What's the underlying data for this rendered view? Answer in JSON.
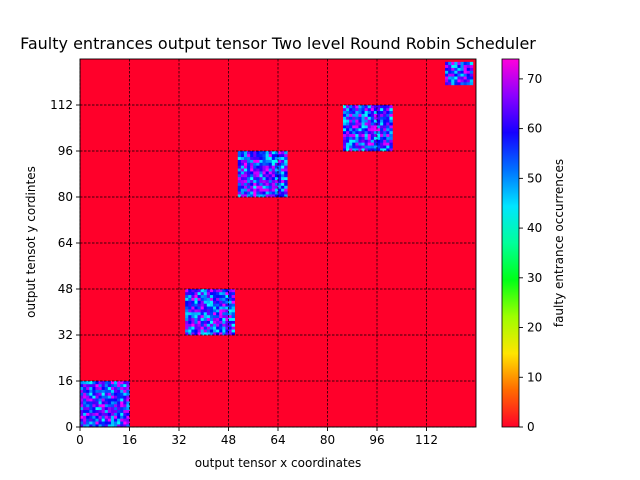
{
  "chart_data": {
    "type": "heatmap",
    "title": "Faulty entrances output tensor Two level Round Robin Scheduler",
    "xlabel": "output tensor x coordinates",
    "ylabel": "output tensot y cordintes",
    "colorbar_label": "faulty entrance occurrences",
    "xlim": [
      0,
      128
    ],
    "ylim": [
      0,
      128
    ],
    "x_ticks": [
      0,
      16,
      32,
      48,
      64,
      80,
      96,
      112
    ],
    "y_ticks": [
      0,
      16,
      32,
      48,
      64,
      80,
      96,
      112
    ],
    "colorbar_range": [
      0,
      74
    ],
    "colorbar_ticks": [
      0,
      10,
      20,
      30,
      40,
      50,
      60,
      70
    ],
    "colormap": "gist_rainbow_r",
    "background_value": 0,
    "grid": true,
    "hot_blocks": [
      {
        "x_range": [
          0,
          16
        ],
        "y_range": [
          0,
          16
        ],
        "value_range": [
          45,
          74
        ]
      },
      {
        "x_range": [
          34,
          50
        ],
        "y_range": [
          32,
          48
        ],
        "value_range": [
          45,
          74
        ]
      },
      {
        "x_range": [
          51,
          67
        ],
        "y_range": [
          80,
          96
        ],
        "value_range": [
          45,
          74
        ]
      },
      {
        "x_range": [
          85,
          101
        ],
        "y_range": [
          96,
          112
        ],
        "value_range": [
          45,
          74
        ]
      },
      {
        "x_range": [
          118,
          127
        ],
        "y_range": [
          119,
          127
        ],
        "value_range": [
          45,
          74
        ]
      }
    ]
  }
}
